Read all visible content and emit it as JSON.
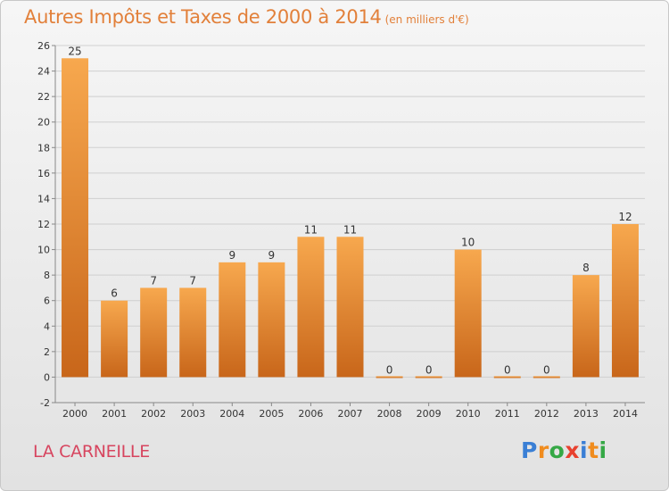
{
  "title": "Autres Impôts et Taxes de 2000 à 2014",
  "subtitle": "(en milliers d'€)",
  "location": "LA CARNEILLE",
  "logo": {
    "text": "Proxiti",
    "letters": [
      {
        "char": "P",
        "color": "#3a7fd5"
      },
      {
        "char": "r",
        "color": "#f08c1e"
      },
      {
        "char": "o",
        "color": "#35a845"
      },
      {
        "char": "x",
        "color": "#e8412f"
      },
      {
        "char": "i",
        "color": "#3a7fd5"
      },
      {
        "char": "t",
        "color": "#f08c1e"
      },
      {
        "char": "i",
        "color": "#35a845"
      }
    ]
  },
  "chart_data": {
    "type": "bar",
    "title": "Autres Impôts et Taxes de 2000 à 2014",
    "subtitle": "(en milliers d'€)",
    "xlabel": "",
    "ylabel": "",
    "categories": [
      "2000",
      "2001",
      "2002",
      "2003",
      "2004",
      "2005",
      "2006",
      "2007",
      "2008",
      "2009",
      "2010",
      "2011",
      "2012",
      "2013",
      "2014"
    ],
    "values": [
      25,
      6,
      7,
      7,
      9,
      9,
      11,
      11,
      0,
      0,
      10,
      0,
      0,
      8,
      12
    ],
    "ylim": [
      -2,
      26
    ],
    "yticks": [
      -2,
      0,
      2,
      4,
      6,
      8,
      10,
      12,
      14,
      16,
      18,
      20,
      22,
      24,
      26
    ],
    "grid": true,
    "bar_color_light": "#f7a84e",
    "bar_color_dark": "#c8661a",
    "title_color": "#e2803a",
    "location_color": "#d7455f"
  }
}
